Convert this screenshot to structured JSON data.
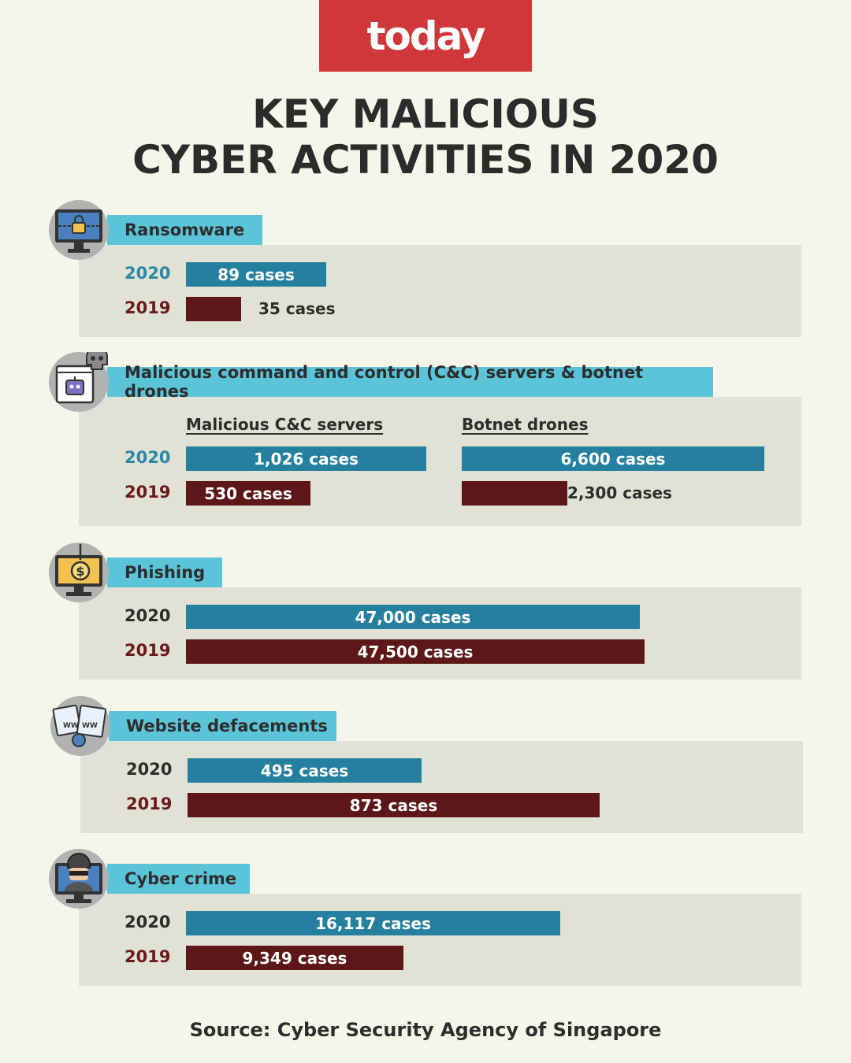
{
  "brand": {
    "logo_text": "today",
    "color": "#d0373a"
  },
  "title": {
    "line1": "KEY MALICIOUS",
    "line2": "CYBER ACTIVITIES IN 2020"
  },
  "colors": {
    "bar_2020": "#25809f",
    "bar_2019": "#5d1718",
    "label_bg": "#5bc4d9",
    "panel_bg": "#e1e1d5"
  },
  "sections": [
    {
      "label": "Ransomware",
      "icon": "locked-monitor-icon"
    },
    {
      "label": "Malicious command and control (C&C) servers & botnet drones",
      "icon": "robot-skull-icon",
      "subheads": [
        "Malicious C&C servers",
        "Botnet drones"
      ]
    },
    {
      "label": "Phishing",
      "icon": "fishing-hook-dollar-icon"
    },
    {
      "label": "Website defacements",
      "icon": "broken-www-icon"
    },
    {
      "label": "Cyber crime",
      "icon": "hacker-monitor-icon"
    }
  ],
  "years": [
    "2020",
    "2019"
  ],
  "bar_labels": {
    "ransomware": [
      "89 cases",
      "35 cases"
    ],
    "cc_servers": [
      "1,026 cases",
      "530 cases"
    ],
    "botnet": [
      "6,600 cases",
      "2,300 cases"
    ],
    "phishing": [
      "47,000 cases",
      "47,500 cases"
    ],
    "defacements": [
      "495 cases",
      "873 cases"
    ],
    "cybercrime": [
      "16,117 cases",
      "9,349 cases"
    ]
  },
  "chart_data": [
    {
      "type": "bar",
      "title": "Ransomware",
      "categories": [
        "2020",
        "2019"
      ],
      "values": [
        89,
        35
      ]
    },
    {
      "type": "bar",
      "title": "Malicious C&C servers",
      "categories": [
        "2020",
        "2019"
      ],
      "values": [
        1026,
        530
      ]
    },
    {
      "type": "bar",
      "title": "Botnet drones",
      "categories": [
        "2020",
        "2019"
      ],
      "values": [
        6600,
        2300
      ]
    },
    {
      "type": "bar",
      "title": "Phishing",
      "categories": [
        "2020",
        "2019"
      ],
      "values": [
        47000,
        47500
      ]
    },
    {
      "type": "bar",
      "title": "Website defacements",
      "categories": [
        "2020",
        "2019"
      ],
      "values": [
        495,
        873
      ]
    },
    {
      "type": "bar",
      "title": "Cyber crime",
      "categories": [
        "2020",
        "2019"
      ],
      "values": [
        16117,
        9349
      ]
    }
  ],
  "source": "Source: Cyber Security Agency of Singapore"
}
